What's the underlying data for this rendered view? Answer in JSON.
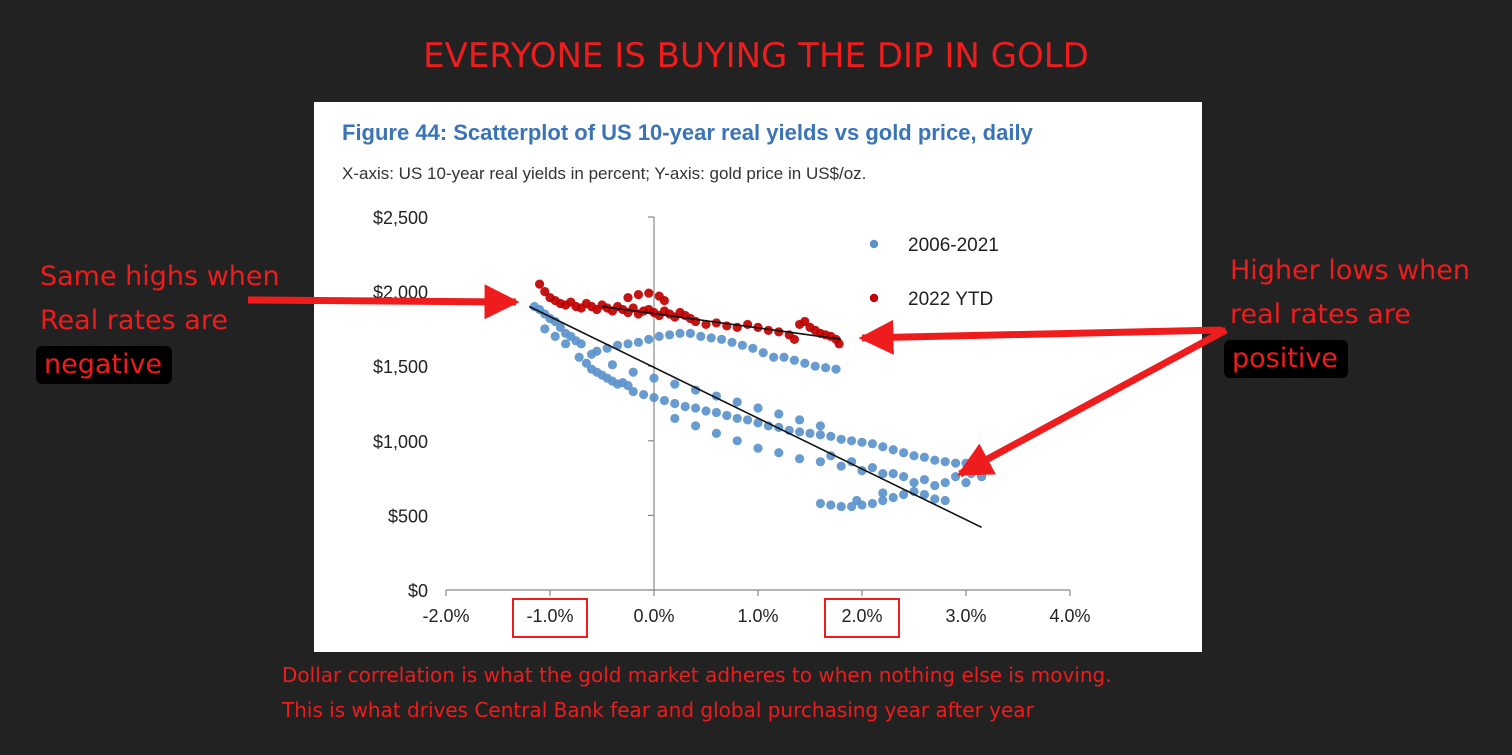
{
  "headline": "EVERYONE IS BUYING THE DIP IN GOLD",
  "figure": {
    "title": "Figure 44: Scatterplot of US 10-year real yields vs gold price, daily",
    "subtitle": "X-axis: US 10-year real yields in percent; Y-axis: gold price in US$/oz."
  },
  "annotations": {
    "left": {
      "line1": "Same highs when",
      "line2": "Real rates are",
      "line3": "negative"
    },
    "right": {
      "line1": "Higher lows when",
      "line2": "real rates are",
      "line3": "positive"
    }
  },
  "footer": {
    "line1": "Dollar correlation is what the gold market adheres to when nothing else is moving.",
    "line2": "This is what drives Central Bank fear and  global purchasing year after year"
  },
  "colors": {
    "headline": "#ee1c1c",
    "series_2006_2021": "#5b94cc",
    "series_2022_ytd": "#c00000",
    "fig_title": "#3a73b8",
    "annotation": "#ee1c1c"
  },
  "chart_data": {
    "type": "scatter",
    "title": "Figure 44: Scatterplot of US 10-year real yields vs gold price, daily",
    "subtitle": "X-axis: US 10-year real yields in percent; Y-axis: gold price in US$/oz.",
    "xlim": [
      -2.0,
      4.0
    ],
    "ylim": [
      0,
      2500
    ],
    "x_ticks": [
      "-2.0%",
      "-1.0%",
      "0.0%",
      "1.0%",
      "2.0%",
      "3.0%",
      "4.0%"
    ],
    "y_ticks": [
      "$0",
      "$500",
      "$1,000",
      "$1,500",
      "$2,000",
      "$2,500"
    ],
    "legend_position": "top-right",
    "grid": false,
    "highlighted_ticks": [
      "-1.0%",
      "2.0%"
    ],
    "series": [
      {
        "name": "2006-2021",
        "points": [
          [
            -1.15,
            1900
          ],
          [
            -1.1,
            1880
          ],
          [
            -1.05,
            1850
          ],
          [
            -1.0,
            1820
          ],
          [
            -0.95,
            1800
          ],
          [
            -0.9,
            1760
          ],
          [
            -0.85,
            1720
          ],
          [
            -0.8,
            1700
          ],
          [
            -0.75,
            1670
          ],
          [
            -0.7,
            1650
          ],
          [
            -0.72,
            1560
          ],
          [
            -0.65,
            1520
          ],
          [
            -0.6,
            1480
          ],
          [
            -0.55,
            1460
          ],
          [
            -0.5,
            1440
          ],
          [
            -0.45,
            1420
          ],
          [
            -0.4,
            1400
          ],
          [
            -0.35,
            1380
          ],
          [
            -0.3,
            1390
          ],
          [
            -0.25,
            1370
          ],
          [
            -0.55,
            1600
          ],
          [
            -0.45,
            1620
          ],
          [
            -0.35,
            1640
          ],
          [
            -0.25,
            1650
          ],
          [
            -0.15,
            1660
          ],
          [
            -0.05,
            1680
          ],
          [
            0.05,
            1700
          ],
          [
            0.15,
            1710
          ],
          [
            0.25,
            1720
          ],
          [
            0.35,
            1720
          ],
          [
            0.45,
            1700
          ],
          [
            0.55,
            1690
          ],
          [
            0.65,
            1680
          ],
          [
            0.75,
            1660
          ],
          [
            0.85,
            1640
          ],
          [
            0.95,
            1620
          ],
          [
            1.05,
            1590
          ],
          [
            1.15,
            1560
          ],
          [
            1.25,
            1560
          ],
          [
            1.35,
            1540
          ],
          [
            1.45,
            1520
          ],
          [
            1.55,
            1500
          ],
          [
            1.65,
            1490
          ],
          [
            1.75,
            1480
          ],
          [
            -0.2,
            1330
          ],
          [
            -0.1,
            1310
          ],
          [
            0.0,
            1290
          ],
          [
            0.1,
            1270
          ],
          [
            0.2,
            1250
          ],
          [
            0.3,
            1230
          ],
          [
            0.4,
            1220
          ],
          [
            0.5,
            1200
          ],
          [
            0.6,
            1190
          ],
          [
            0.7,
            1170
          ],
          [
            0.8,
            1150
          ],
          [
            0.9,
            1140
          ],
          [
            1.0,
            1120
          ],
          [
            1.1,
            1100
          ],
          [
            1.2,
            1090
          ],
          [
            1.3,
            1070
          ],
          [
            1.4,
            1060
          ],
          [
            1.5,
            1050
          ],
          [
            1.6,
            1040
          ],
          [
            1.7,
            1030
          ],
          [
            1.8,
            1010
          ],
          [
            1.9,
            1000
          ],
          [
            2.0,
            990
          ],
          [
            2.1,
            980
          ],
          [
            2.2,
            960
          ],
          [
            2.3,
            940
          ],
          [
            2.4,
            920
          ],
          [
            2.5,
            900
          ],
          [
            2.6,
            890
          ],
          [
            2.7,
            870
          ],
          [
            2.8,
            860
          ],
          [
            2.9,
            850
          ],
          [
            3.0,
            850
          ],
          [
            3.1,
            840
          ],
          [
            3.15,
            820
          ],
          [
            0.2,
            1150
          ],
          [
            0.4,
            1100
          ],
          [
            0.6,
            1050
          ],
          [
            0.8,
            1000
          ],
          [
            1.0,
            950
          ],
          [
            1.2,
            920
          ],
          [
            1.4,
            880
          ],
          [
            1.6,
            860
          ],
          [
            1.8,
            830
          ],
          [
            2.0,
            800
          ],
          [
            2.2,
            780
          ],
          [
            2.4,
            760
          ],
          [
            2.6,
            740
          ],
          [
            2.8,
            720
          ],
          [
            3.0,
            720
          ],
          [
            1.7,
            900
          ],
          [
            1.9,
            860
          ],
          [
            2.1,
            820
          ],
          [
            2.3,
            780
          ],
          [
            2.5,
            720
          ],
          [
            2.7,
            700
          ],
          [
            2.9,
            760
          ],
          [
            3.05,
            780
          ],
          [
            3.15,
            760
          ],
          [
            1.6,
            580
          ],
          [
            1.7,
            570
          ],
          [
            1.8,
            560
          ],
          [
            1.9,
            560
          ],
          [
            2.0,
            570
          ],
          [
            2.1,
            580
          ],
          [
            2.2,
            600
          ],
          [
            2.3,
            620
          ],
          [
            2.4,
            640
          ],
          [
            2.5,
            660
          ],
          [
            2.6,
            640
          ],
          [
            2.7,
            610
          ],
          [
            2.8,
            600
          ],
          [
            2.2,
            650
          ],
          [
            1.95,
            600
          ],
          [
            -1.05,
            1750
          ],
          [
            -0.95,
            1700
          ],
          [
            -0.85,
            1650
          ],
          [
            -0.6,
            1580
          ],
          [
            -0.4,
            1510
          ],
          [
            -0.2,
            1460
          ],
          [
            0.0,
            1420
          ],
          [
            0.2,
            1380
          ],
          [
            0.4,
            1340
          ],
          [
            0.6,
            1300
          ],
          [
            0.8,
            1260
          ],
          [
            1.0,
            1220
          ],
          [
            1.2,
            1180
          ],
          [
            1.4,
            1140
          ],
          [
            1.6,
            1100
          ]
        ]
      },
      {
        "name": "2022 YTD",
        "points": [
          [
            -1.1,
            2050
          ],
          [
            -1.05,
            2000
          ],
          [
            -1.0,
            1960
          ],
          [
            -0.95,
            1940
          ],
          [
            -0.9,
            1920
          ],
          [
            -0.85,
            1910
          ],
          [
            -0.8,
            1930
          ],
          [
            -0.75,
            1900
          ],
          [
            -0.7,
            1890
          ],
          [
            -0.65,
            1920
          ],
          [
            -0.6,
            1900
          ],
          [
            -0.55,
            1880
          ],
          [
            -0.5,
            1910
          ],
          [
            -0.45,
            1890
          ],
          [
            -0.4,
            1870
          ],
          [
            -0.35,
            1900
          ],
          [
            -0.3,
            1880
          ],
          [
            -0.25,
            1860
          ],
          [
            -0.2,
            1890
          ],
          [
            -0.15,
            1850
          ],
          [
            -0.1,
            1870
          ],
          [
            -0.05,
            1880
          ],
          [
            0.0,
            1860
          ],
          [
            0.05,
            1840
          ],
          [
            0.1,
            1870
          ],
          [
            0.15,
            1850
          ],
          [
            0.2,
            1830
          ],
          [
            0.25,
            1860
          ],
          [
            0.3,
            1840
          ],
          [
            0.35,
            1820
          ],
          [
            -0.25,
            1960
          ],
          [
            -0.15,
            1980
          ],
          [
            -0.05,
            1990
          ],
          [
            0.05,
            1970
          ],
          [
            0.1,
            1940
          ],
          [
            0.4,
            1800
          ],
          [
            0.5,
            1780
          ],
          [
            0.6,
            1790
          ],
          [
            0.7,
            1770
          ],
          [
            0.8,
            1760
          ],
          [
            0.9,
            1780
          ],
          [
            1.0,
            1760
          ],
          [
            1.1,
            1740
          ],
          [
            1.2,
            1730
          ],
          [
            1.3,
            1710
          ],
          [
            1.4,
            1780
          ],
          [
            1.45,
            1800
          ],
          [
            1.5,
            1760
          ],
          [
            1.55,
            1740
          ],
          [
            1.6,
            1720
          ],
          [
            1.65,
            1710
          ],
          [
            1.7,
            1700
          ],
          [
            1.75,
            1680
          ],
          [
            1.78,
            1650
          ],
          [
            1.35,
            1680
          ]
        ]
      }
    ],
    "trendlines": [
      {
        "series": "2006-2021",
        "from": [
          -1.2,
          1900
        ],
        "to": [
          3.15,
          420
        ]
      },
      {
        "series": "2022 YTD",
        "from": [
          -0.5,
          1900
        ],
        "to": [
          1.8,
          1680
        ]
      }
    ]
  }
}
